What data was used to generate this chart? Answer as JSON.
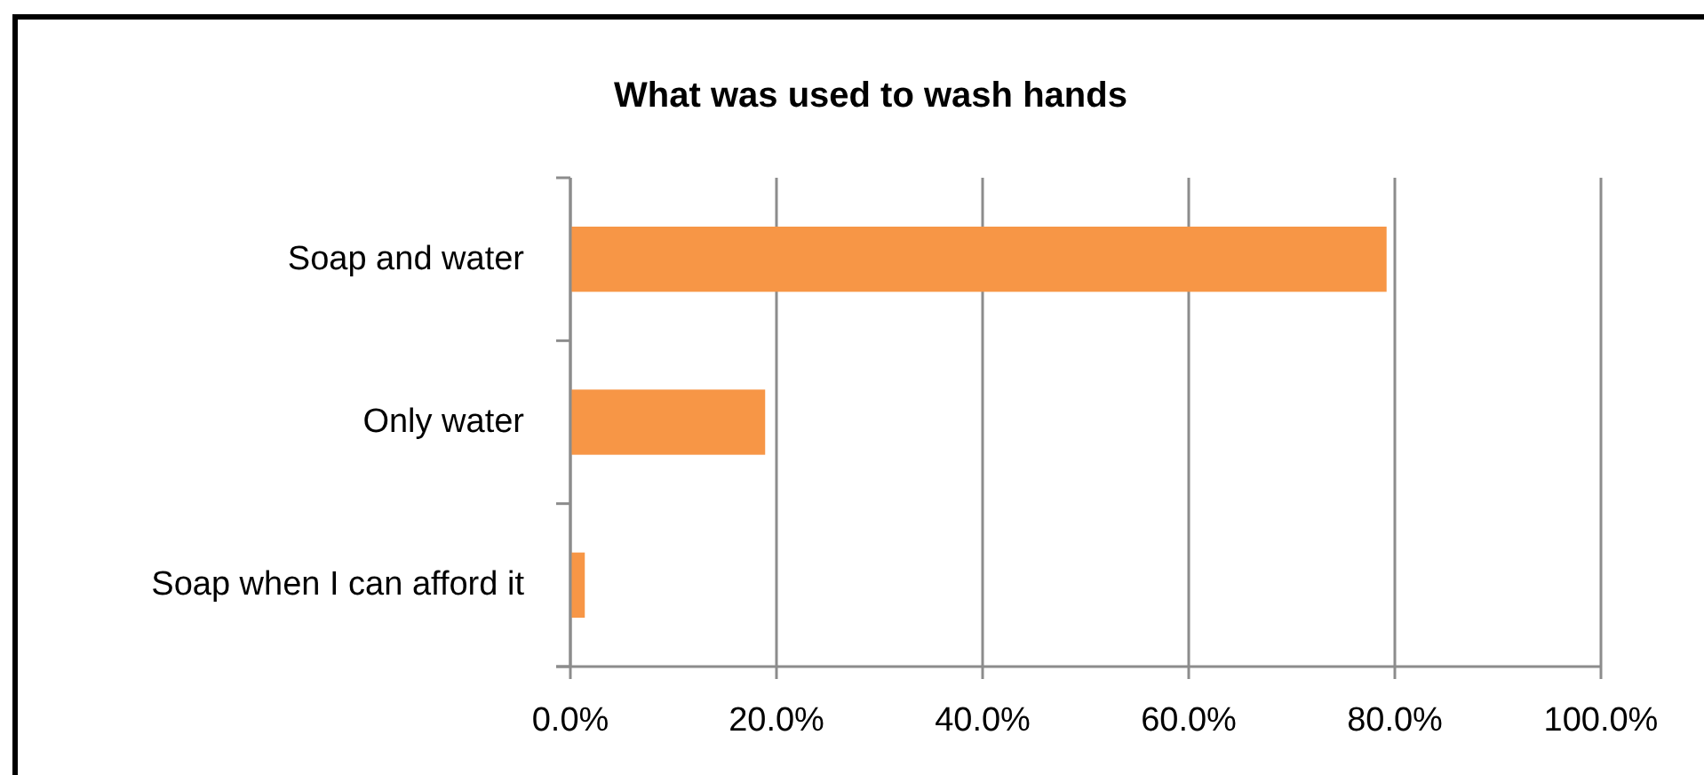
{
  "chart_data": {
    "type": "bar",
    "orientation": "horizontal",
    "title": "What was used to wash hands",
    "categories": [
      "Soap and water",
      "Only water",
      "Soap when I can afford it"
    ],
    "values": [
      79.2,
      18.9,
      1.4
    ],
    "color": "#f79646",
    "xlim": [
      0,
      100
    ],
    "xticks": [
      {
        "value": 0,
        "label": "0.0%"
      },
      {
        "value": 20,
        "label": "20.0%"
      },
      {
        "value": 40,
        "label": "40.0%"
      },
      {
        "value": 60,
        "label": "60.0%"
      },
      {
        "value": 80,
        "label": "80.0%"
      },
      {
        "value": 100,
        "label": "100.0%"
      }
    ],
    "grid": "x"
  }
}
